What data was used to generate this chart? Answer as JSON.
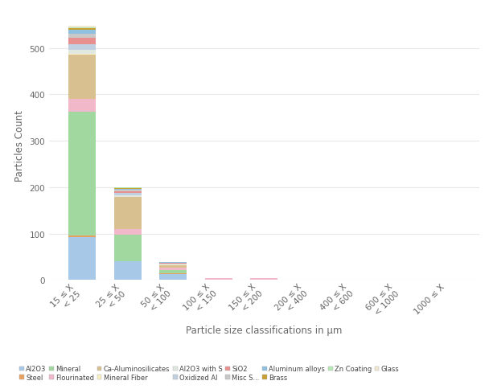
{
  "categories": [
    "15 ≤ X\n< 25",
    "25 ≤ X\n< 50",
    "50 ≤ X\n< 100",
    "100 ≤ X\n< 150",
    "150 ≤ X\n< 200",
    "200 ≤ X\n< 400",
    "400 ≤ X\n< 600",
    "600 ≤ X\n< 1000",
    "1000 ≤ X"
  ],
  "xlabel": "Particle size classifications in μm",
  "ylabel": "Particles Count",
  "series": [
    {
      "name": "Al2O3",
      "color": "#a8c8e8",
      "values": [
        93,
        40,
        13,
        0,
        0,
        0,
        0,
        0,
        0
      ]
    },
    {
      "name": "Steel",
      "color": "#e8a060",
      "values": [
        2,
        1,
        1,
        0,
        0,
        0,
        0,
        0,
        0
      ]
    },
    {
      "name": "Mineral",
      "color": "#a0d8a0",
      "values": [
        268,
        57,
        8,
        1,
        1,
        0,
        0,
        0,
        0
      ]
    },
    {
      "name": "Flourinated",
      "color": "#f0b8c8",
      "values": [
        28,
        12,
        5,
        3,
        3,
        0,
        0,
        0,
        0
      ]
    },
    {
      "name": "Ca-Aluminosilicates",
      "color": "#d8c090",
      "values": [
        95,
        68,
        5,
        0,
        0,
        0,
        0,
        0,
        0
      ]
    },
    {
      "name": "Mineral Fiber",
      "color": "#f8f0c0",
      "values": [
        2,
        1,
        1,
        0,
        0,
        0,
        0,
        0,
        0
      ]
    },
    {
      "name": "Al2O3 with S",
      "color": "#e0e8e0",
      "values": [
        8,
        3,
        1,
        0,
        0,
        0,
        0,
        0,
        0
      ]
    },
    {
      "name": "Oxidized Al",
      "color": "#c0d0e0",
      "values": [
        12,
        5,
        1,
        0,
        0,
        0,
        0,
        0,
        0
      ]
    },
    {
      "name": "SiO2",
      "color": "#e89090",
      "values": [
        14,
        4,
        1,
        0,
        0,
        0,
        0,
        0,
        0
      ]
    },
    {
      "name": "Misc S...",
      "color": "#c8c8c8",
      "values": [
        8,
        3,
        1,
        0,
        0,
        0,
        0,
        0,
        0
      ]
    },
    {
      "name": "Aluminum alloys",
      "color": "#90c0e0",
      "values": [
        10,
        3,
        1,
        0,
        0,
        0,
        0,
        0,
        0
      ]
    },
    {
      "name": "Brass",
      "color": "#c8a030",
      "values": [
        3,
        1,
        0,
        0,
        0,
        0,
        0,
        0,
        0
      ]
    },
    {
      "name": "Zn Coating",
      "color": "#b8e8b8",
      "values": [
        2,
        1,
        0,
        0,
        0,
        0,
        0,
        0,
        0
      ]
    },
    {
      "name": "Glass",
      "color": "#f0e8d0",
      "values": [
        3,
        1,
        0,
        0,
        0,
        0,
        0,
        0,
        0
      ]
    }
  ],
  "ylim": [
    0,
    580
  ],
  "yticks": [
    0,
    100,
    200,
    300,
    400,
    500
  ],
  "background_color": "#ffffff",
  "plot_bg": "#ffffff",
  "legend_fontsize": 6.0,
  "axis_fontsize": 8.5,
  "tick_fontsize": 7.5,
  "bar_width": 0.6
}
